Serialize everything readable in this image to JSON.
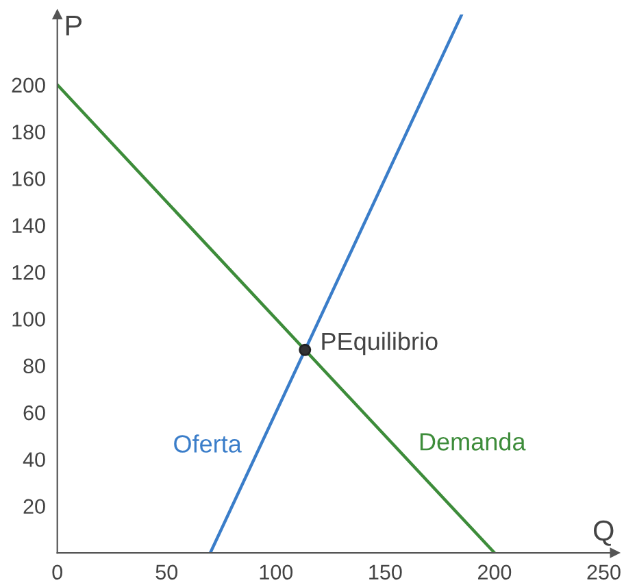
{
  "chart_data": {
    "type": "line",
    "xlabel": "Q",
    "ylabel": "P",
    "xlim": [
      0,
      255
    ],
    "ylim": [
      0,
      230
    ],
    "xticks": [
      0,
      50,
      100,
      150,
      200,
      250
    ],
    "yticks": [
      20,
      40,
      60,
      80,
      100,
      120,
      140,
      160,
      180,
      200
    ],
    "grid": false,
    "legend": false,
    "marker": "none",
    "series": [
      {
        "name": "Oferta",
        "color": "#3a7dc9",
        "x": [
          70,
          185
        ],
        "values": [
          0,
          230
        ]
      },
      {
        "name": "Demanda",
        "color": "#3d8c3a",
        "x": [
          0,
          200
        ],
        "values": [
          200,
          0
        ]
      },
      {
        "name": "PEquilibrio",
        "type": "scatter",
        "marker": "circle",
        "color": "#333333",
        "x": [
          113.3
        ],
        "values": [
          86.7
        ]
      }
    ]
  }
}
